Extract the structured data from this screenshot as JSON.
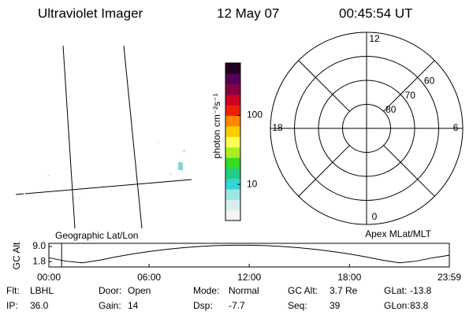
{
  "header": {
    "title": "Ultraviolet Imager",
    "date": "12 May 07",
    "time": "00:45:54 UT"
  },
  "image_panel": {
    "label": "Geographic Lat/Lon"
  },
  "colorbar": {
    "label": "photon cm⁻²s⁻¹",
    "log_scale": true,
    "lim": [
      3,
      575
    ],
    "ticks": [
      10,
      100
    ],
    "colors": [
      "#f4f4f4",
      "#d8eeee",
      "#9ee6e6",
      "#33d6d6",
      "#22cc88",
      "#33dd22",
      "#aaee22",
      "#ffff55",
      "#ffcc00",
      "#ff8800",
      "#ee2200",
      "#cc0022",
      "#880044",
      "#550055",
      "#220022"
    ]
  },
  "polar": {
    "label": "Apex MLat/MLT",
    "rlim": [
      90,
      50
    ],
    "lat_ticks": [
      80,
      70,
      60
    ],
    "mlt_ticks": [
      12,
      18,
      6,
      0
    ]
  },
  "chart_data": {
    "type": "line",
    "y_label": "GC Alt",
    "x": [
      0,
      1,
      2,
      3,
      4,
      5,
      6,
      7,
      8,
      9,
      10,
      11,
      12,
      13,
      14,
      15,
      16,
      17,
      18,
      19,
      20,
      21,
      22,
      23,
      23.983
    ],
    "values": [
      3.6,
      2.0,
      1.2,
      2.4,
      4.0,
      5.4,
      6.6,
      7.6,
      8.4,
      9.0,
      9.4,
      9.6,
      9.6,
      9.4,
      9.0,
      8.4,
      7.6,
      6.6,
      5.4,
      4.0,
      2.4,
      1.2,
      2.0,
      3.6,
      4.8
    ],
    "color": "#000000",
    "marker_x": 0.765,
    "marker_color": "#ff0000",
    "xlim": [
      0,
      23.983
    ],
    "ylim": [
      -0.8,
      10.5
    ],
    "xticks": [
      {
        "value": 0,
        "label": "00:00"
      },
      {
        "value": 6,
        "label": "06:00"
      },
      {
        "value": 12,
        "label": "12:00"
      },
      {
        "value": 18,
        "label": "18:00"
      },
      {
        "value": 23.983,
        "label": "23:59"
      }
    ],
    "yticks": [
      {
        "value": 1.8,
        "label": "1.8"
      },
      {
        "value": 9,
        "label": "9.0"
      }
    ]
  },
  "footer": {
    "rows": [
      [
        [
          "Flt:",
          "LBHL"
        ],
        [
          "Door:",
          "Open"
        ],
        [
          "Mode:",
          "Normal"
        ],
        [
          "GC Alt:",
          "3.7 Re"
        ],
        [
          "GLat:",
          "-13.8"
        ]
      ],
      [
        [
          "IP:",
          "36.0"
        ],
        [
          "Gain:",
          "14"
        ],
        [
          "Dsp:",
          "-7.7"
        ],
        [
          "Seq:",
          "39"
        ],
        [
          "GLon:",
          "83.8"
        ]
      ]
    ]
  }
}
